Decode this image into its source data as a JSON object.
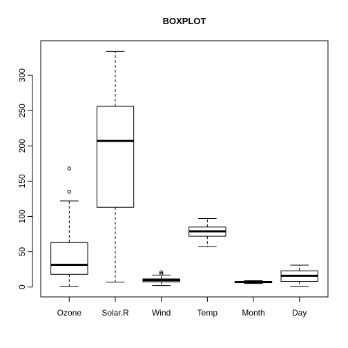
{
  "chart_data": {
    "type": "boxplot",
    "title": "BOXPLOT",
    "xlabel": "",
    "ylabel": "",
    "ylim": [
      -14,
      349
    ],
    "yticks": [
      0,
      50,
      100,
      150,
      200,
      250,
      300
    ],
    "ytick_labels": [
      "0",
      "50",
      "100",
      "150",
      "200",
      "250",
      "300"
    ],
    "categories": [
      "Ozone",
      "Solar.R",
      "Wind",
      "Temp",
      "Month",
      "Day"
    ],
    "boxes": [
      {
        "name": "Ozone",
        "min": 1,
        "q1": 18,
        "median": 31.5,
        "q3": 63,
        "max": 122,
        "outliers": [
          135,
          168
        ]
      },
      {
        "name": "Solar.R",
        "min": 7,
        "q1": 113,
        "median": 207,
        "q3": 256,
        "max": 334,
        "outliers": []
      },
      {
        "name": "Wind",
        "min": 2,
        "q1": 7.4,
        "median": 9.7,
        "q3": 11.5,
        "max": 17,
        "outliers": [
          19,
          21
        ]
      },
      {
        "name": "Temp",
        "min": 57,
        "q1": 72,
        "median": 79,
        "q3": 85,
        "max": 97,
        "outliers": []
      },
      {
        "name": "Month",
        "min": 5,
        "q1": 6,
        "median": 7,
        "q3": 8,
        "max": 9,
        "outliers": []
      },
      {
        "name": "Day",
        "min": 1,
        "q1": 8,
        "median": 16,
        "q3": 23,
        "max": 31,
        "outliers": []
      }
    ],
    "grid": false,
    "legend": "none"
  }
}
